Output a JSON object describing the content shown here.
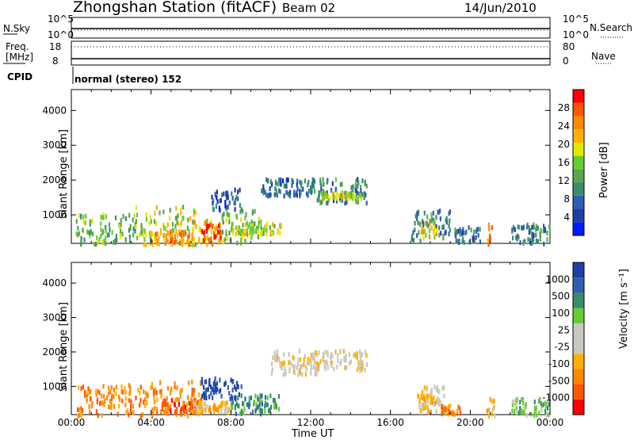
{
  "header": {
    "station": "Zhongshan Station (fitACF)",
    "beam": "Beam 02",
    "date": "14/Jun/2010"
  },
  "panels": {
    "sky_label": "N.Sky",
    "search_label": "N.Search",
    "sky_ticks": [
      "10^5",
      "10^0"
    ],
    "search_ticks": [
      "10^5",
      "10^0"
    ],
    "freq_label_1": "Freq.",
    "freq_label_2": "[MHz]",
    "freq_ticks": [
      "18",
      "8"
    ],
    "nave_label": "Nave",
    "nave_ticks": [
      "80",
      "0"
    ],
    "cpid_label": "CPID",
    "cpid_text": "normal (stereo) 152"
  },
  "colors": {
    "power": [
      "#0019ff",
      "#1e3fa6",
      "#2e5fb4",
      "#3a8c6a",
      "#5aa84a",
      "#66cc33",
      "#e6e600",
      "#ffb000",
      "#ff8800",
      "#ff5500",
      "#ff0000"
    ],
    "velocity": [
      "#ff0000",
      "#ff5500",
      "#ff8800",
      "#ffb000",
      "#c8c8c0",
      "#c8c8c0",
      "#66cc33",
      "#3a8c6a",
      "#2e5fb4",
      "#1e3fa6"
    ]
  },
  "chart_data": [
    {
      "type": "heatmap",
      "name": "power",
      "ylabel": "Slant Range [km]",
      "yticks": [
        "4000",
        "3000",
        "2000",
        "1000"
      ],
      "ylim": [
        180,
        4600
      ],
      "xlim": [
        0,
        24
      ],
      "colorbar_label": "Power [dB]",
      "colorbar_ticks": [
        "28",
        "24",
        "20",
        "16",
        "12",
        "8",
        "4"
      ],
      "colorbar_range": [
        0,
        32
      ],
      "regions": [
        {
          "t0": 0.2,
          "t1": 3.2,
          "r0": 200,
          "r1": 1100,
          "level": 14
        },
        {
          "t0": 3.2,
          "t1": 6.2,
          "r0": 200,
          "r1": 1300,
          "level": 18
        },
        {
          "t0": 4.0,
          "t1": 6.0,
          "r0": 200,
          "r1": 600,
          "level": 24
        },
        {
          "t0": 6.0,
          "t1": 7.5,
          "r0": 200,
          "r1": 900,
          "level": 22
        },
        {
          "t0": 6.5,
          "t1": 7.5,
          "r0": 300,
          "r1": 800,
          "level": 27
        },
        {
          "t0": 7.5,
          "t1": 9.5,
          "r0": 250,
          "r1": 1200,
          "level": 15
        },
        {
          "t0": 8.0,
          "t1": 10.5,
          "r0": 500,
          "r1": 800,
          "level": 18
        },
        {
          "t0": 7.0,
          "t1": 8.5,
          "r0": 1200,
          "r1": 1800,
          "level": 6
        },
        {
          "t0": 9.5,
          "t1": 12.0,
          "r0": 1600,
          "r1": 2100,
          "level": 7
        },
        {
          "t0": 12.0,
          "t1": 14.8,
          "r0": 1400,
          "r1": 2100,
          "level": 10
        },
        {
          "t0": 12.5,
          "t1": 14.5,
          "r0": 1500,
          "r1": 1700,
          "level": 17
        },
        {
          "t0": 17.0,
          "t1": 19.0,
          "r0": 300,
          "r1": 1200,
          "level": 10
        },
        {
          "t0": 17.5,
          "t1": 18.3,
          "r0": 400,
          "r1": 900,
          "level": 20
        },
        {
          "t0": 19.2,
          "t1": 20.5,
          "r0": 250,
          "r1": 700,
          "level": 8
        },
        {
          "t0": 20.8,
          "t1": 21.1,
          "r0": 200,
          "r1": 800,
          "level": 26
        },
        {
          "t0": 22.0,
          "t1": 24.0,
          "r0": 200,
          "r1": 800,
          "level": 9
        }
      ]
    },
    {
      "type": "heatmap",
      "name": "velocity",
      "ylabel": "Slant Range [km]",
      "xlabel": "Time UT",
      "yticks": [
        "4000",
        "3000",
        "2000",
        "1000"
      ],
      "xticks": [
        "00:00",
        "04:00",
        "08:00",
        "12:00",
        "16:00",
        "20:00",
        "00:00"
      ],
      "ylim": [
        180,
        4600
      ],
      "xlim": [
        0,
        24
      ],
      "colorbar_label": "Velocity [m s⁻¹]",
      "colorbar_ticks": [
        "1000",
        "500",
        "100",
        "25",
        "-25",
        "-100",
        "-500",
        "-1000"
      ],
      "regions": [
        {
          "t0": 0.2,
          "t1": 3.5,
          "r0": 200,
          "r1": 1100,
          "level": 2
        },
        {
          "t0": 3.5,
          "t1": 6.5,
          "r0": 200,
          "r1": 1200,
          "level": 2
        },
        {
          "t0": 4.5,
          "t1": 6.5,
          "r0": 300,
          "r1": 700,
          "level": 1
        },
        {
          "t0": 6.0,
          "t1": 8.0,
          "r0": 300,
          "r1": 600,
          "level": 3
        },
        {
          "t0": 6.5,
          "t1": 8.5,
          "r0": 700,
          "r1": 1300,
          "level": 9
        },
        {
          "t0": 8.0,
          "t1": 10.5,
          "r0": 250,
          "r1": 800,
          "level": 7
        },
        {
          "t0": 10.0,
          "t1": 12.5,
          "r0": 1400,
          "r1": 2100,
          "level": 4
        },
        {
          "t0": 12.0,
          "t1": 14.8,
          "r0": 1500,
          "r1": 2100,
          "level": 4
        },
        {
          "t0": 17.5,
          "t1": 18.8,
          "r0": 300,
          "r1": 1100,
          "level": 4
        },
        {
          "t0": 17.3,
          "t1": 18.2,
          "r0": 300,
          "r1": 800,
          "level": 3
        },
        {
          "t0": 18.5,
          "t1": 19.5,
          "r0": 250,
          "r1": 500,
          "level": 2
        },
        {
          "t0": 20.8,
          "t1": 21.2,
          "r0": 200,
          "r1": 700,
          "level": 3
        },
        {
          "t0": 22.0,
          "t1": 24.0,
          "r0": 200,
          "r1": 700,
          "level": 6
        }
      ]
    }
  ]
}
